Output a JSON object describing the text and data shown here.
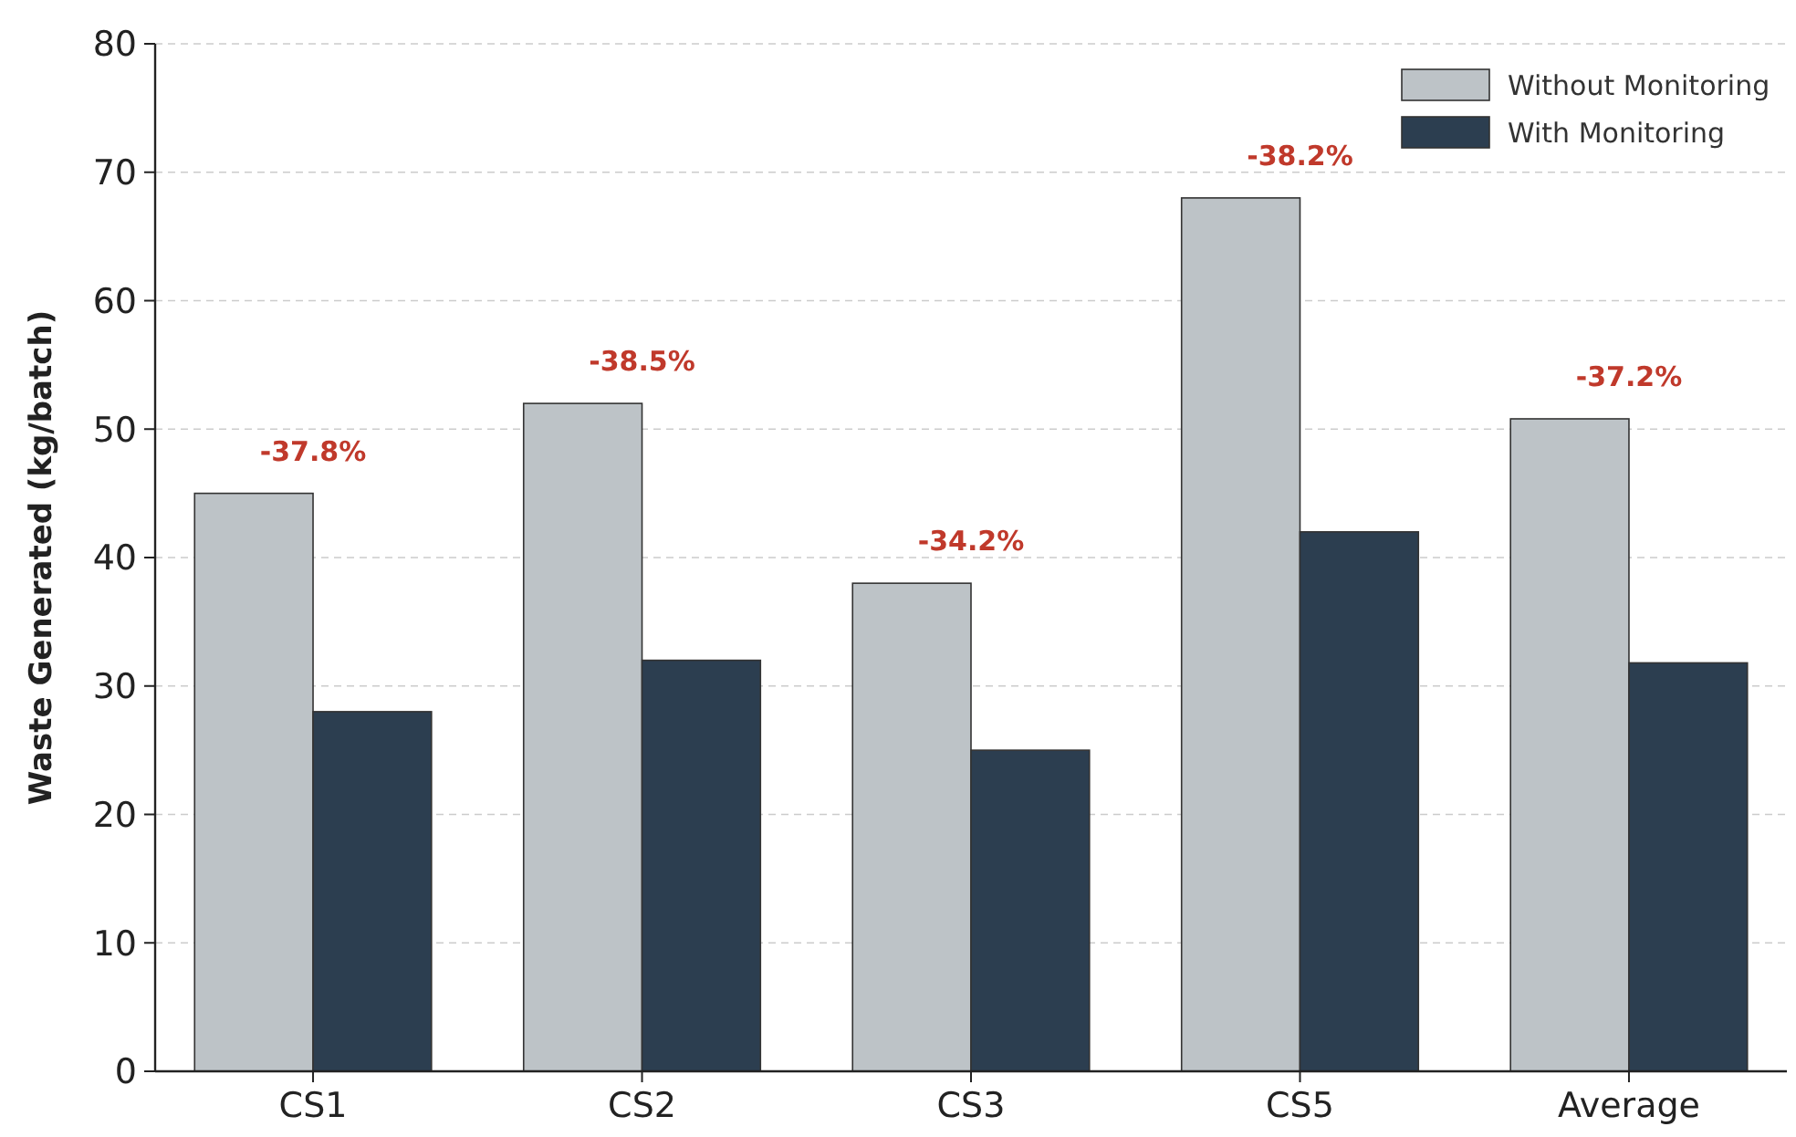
{
  "chart_data": {
    "type": "bar",
    "ylabel": "Waste Generated (kg/batch)",
    "categories": [
      "CS1",
      "CS2",
      "CS3",
      "CS5",
      "Average"
    ],
    "series": [
      {
        "name": "Without Monitoring",
        "color": "#bdc3c7",
        "values": [
          45,
          52,
          38,
          68,
          50.8
        ]
      },
      {
        "name": "With Monitoring",
        "color": "#2c3e50",
        "values": [
          28,
          32,
          25,
          42,
          31.8
        ]
      }
    ],
    "ylim": [
      0,
      80
    ],
    "yticks": [
      0,
      10,
      20,
      30,
      40,
      50,
      60,
      70,
      80
    ],
    "grid": "y",
    "legend": "top right",
    "annotations": [
      {
        "text": "-37.8%",
        "x": "CS1",
        "y": 45
      },
      {
        "text": "-38.5%",
        "x": "CS2",
        "y": 52
      },
      {
        "text": "-34.2%",
        "x": "CS3",
        "y": 38
      },
      {
        "text": "-38.2%",
        "x": "CS5",
        "y": 68
      },
      {
        "text": "-37.2%",
        "x": "Average",
        "y": 50.8
      }
    ]
  }
}
